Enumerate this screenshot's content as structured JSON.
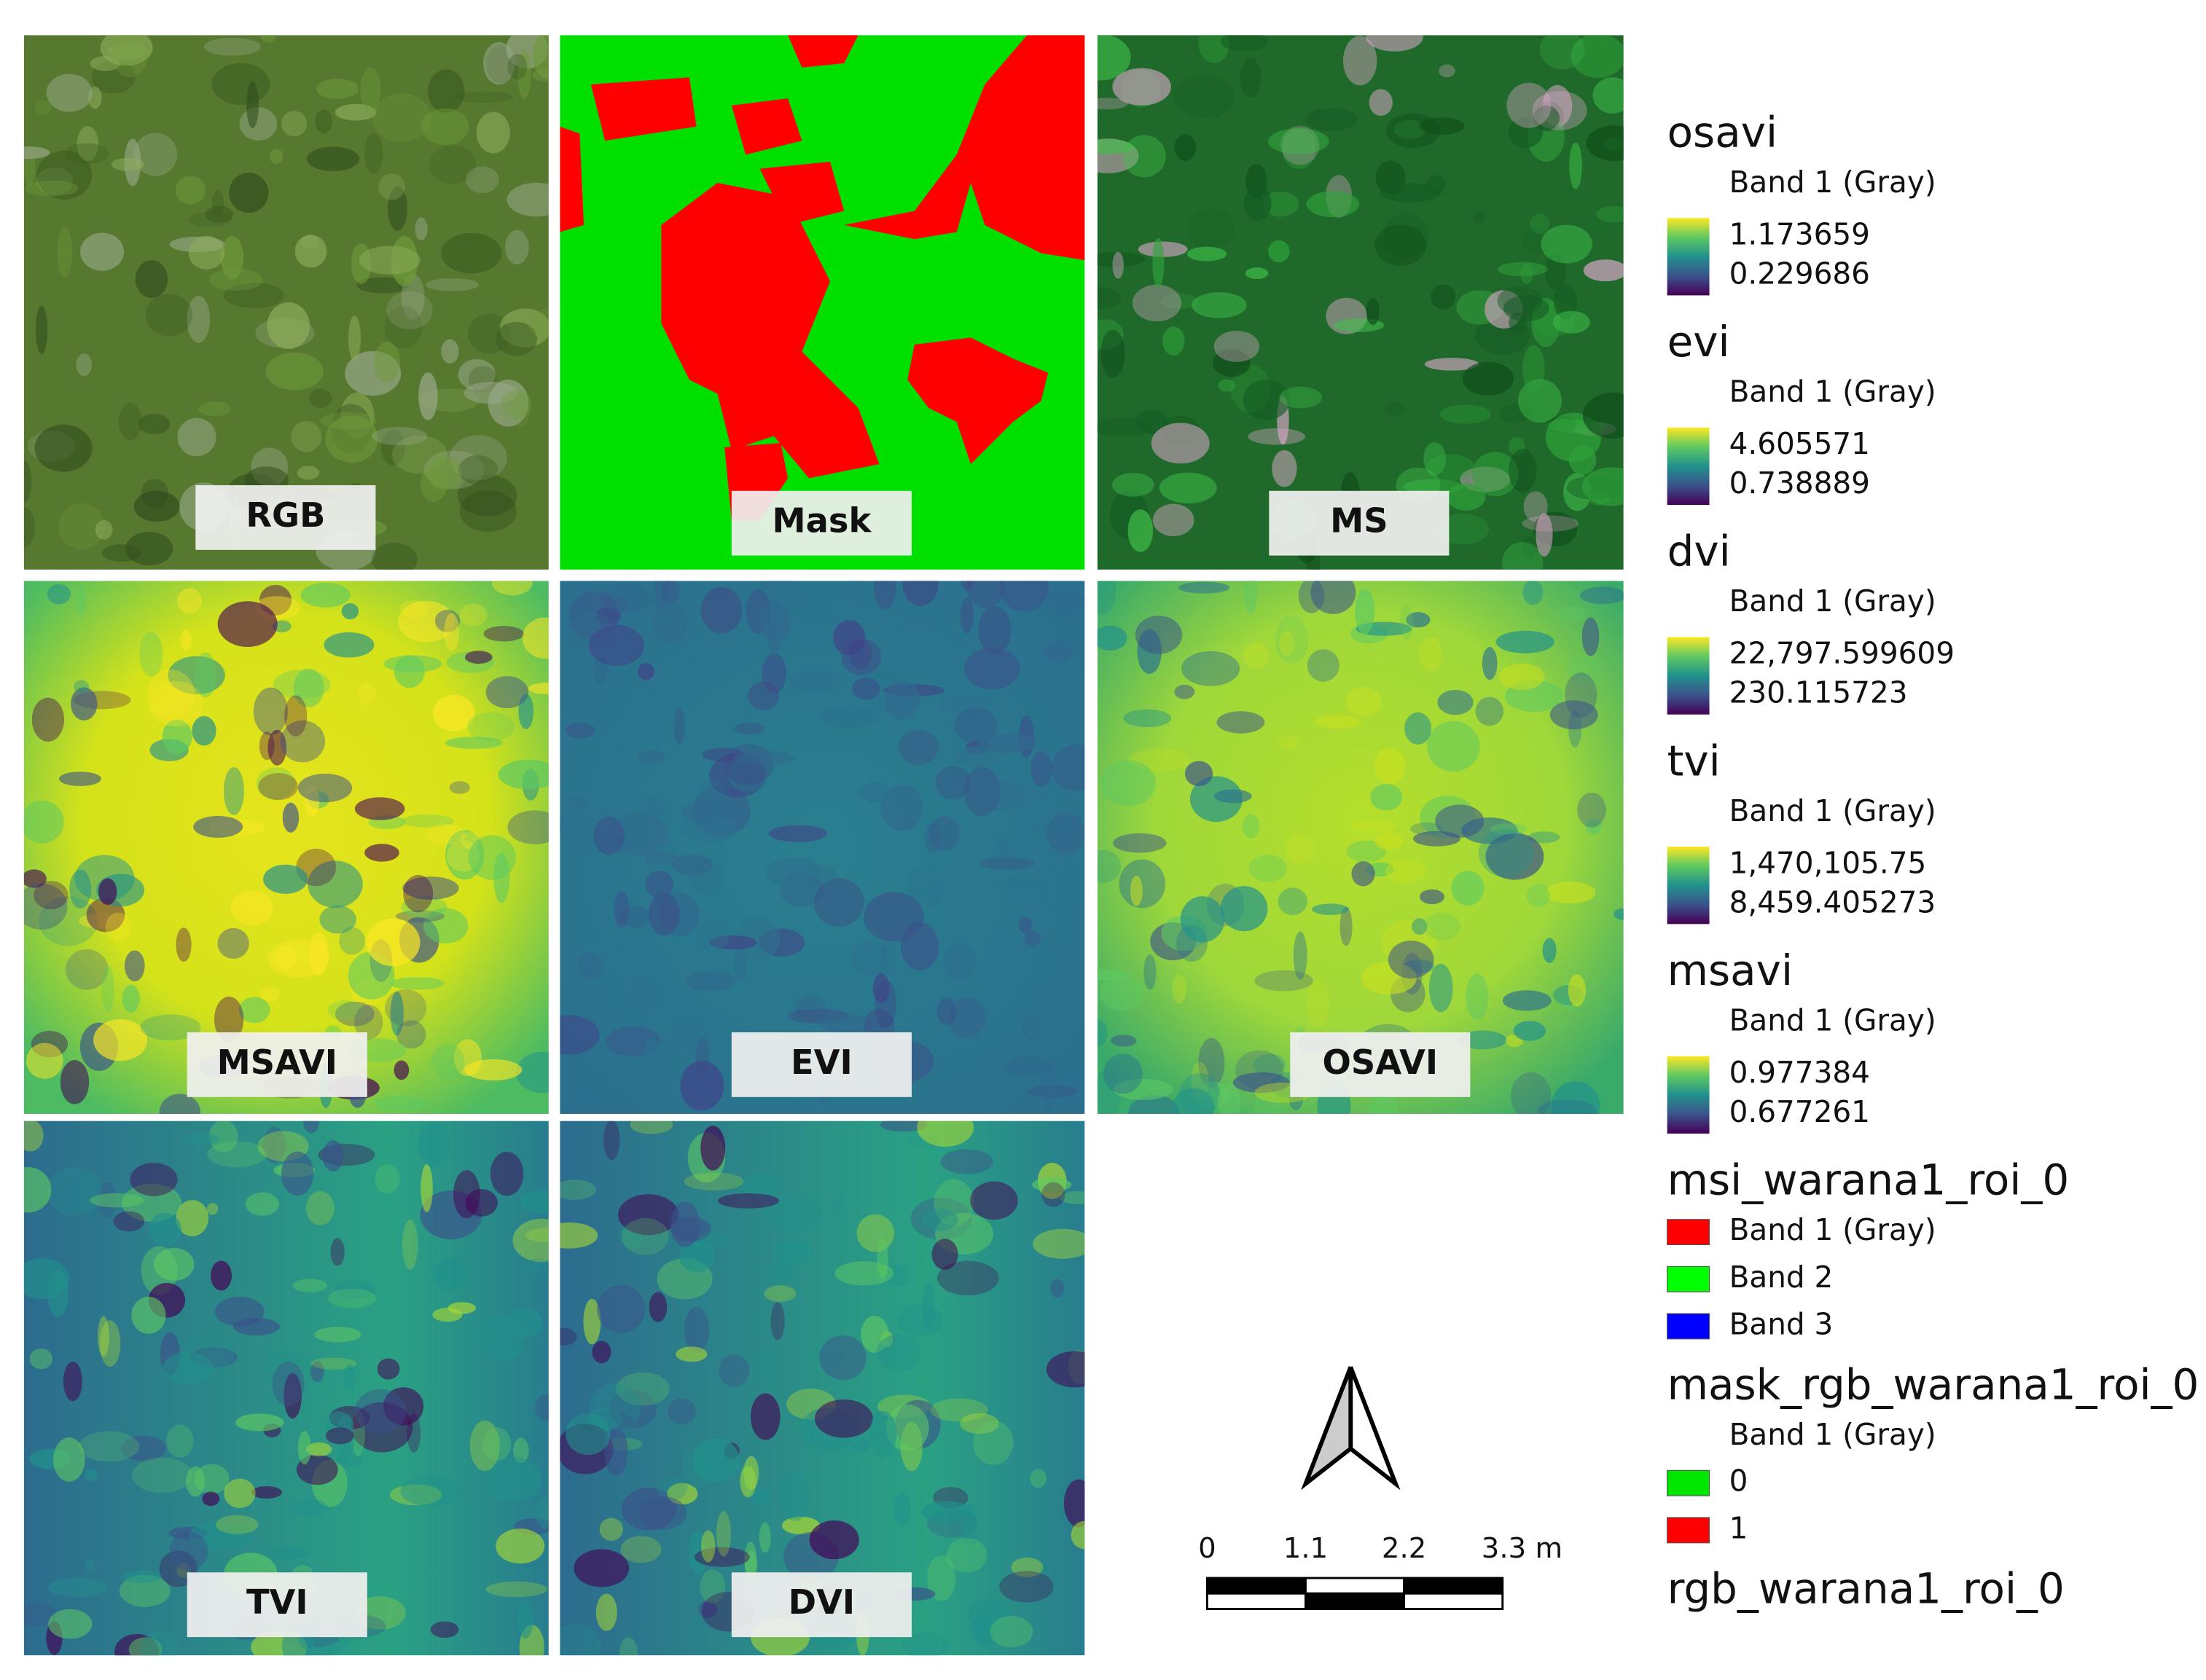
{
  "panels": [
    {
      "label": "RGB"
    },
    {
      "label": "Mask"
    },
    {
      "label": "MS"
    },
    {
      "label": "MSAVI"
    },
    {
      "label": "EVI"
    },
    {
      "label": "OSAVI"
    },
    {
      "label": "TVI"
    },
    {
      "label": "DVI"
    }
  ],
  "legend": [
    {
      "title": "osavi",
      "subtitle": "Band 1 (Gray)",
      "max": "1.173659",
      "min": "0.229686"
    },
    {
      "title": "evi",
      "subtitle": "Band 1 (Gray)",
      "max": "4.605571",
      "min": "0.738889"
    },
    {
      "title": "dvi",
      "subtitle": "Band 1 (Gray)",
      "max": "22,797.599609",
      "min": "230.115723"
    },
    {
      "title": "tvi",
      "subtitle": "Band 1 (Gray)",
      "max": "1,470,105.75",
      "min": "8,459.405273"
    },
    {
      "title": "msavi",
      "subtitle": "Band 1 (Gray)",
      "max": "0.977384",
      "min": "0.677261"
    },
    {
      "title": "msi_warana1_roi_0",
      "items": [
        {
          "label": "Band 1 (Gray)",
          "color": "#ff0000"
        },
        {
          "label": "Band 2",
          "color": "#00ff00"
        },
        {
          "label": "Band 3",
          "color": "#0000ff"
        }
      ]
    },
    {
      "title": "mask_rgb_warana1_roi_0",
      "subtitle": "Band 1 (Gray)",
      "items": [
        {
          "label": "0",
          "color": "#00e600"
        },
        {
          "label": "1",
          "color": "#ff0000"
        }
      ]
    },
    {
      "title": "rgb_warana1_roi_0"
    }
  ],
  "scale_bar": {
    "labels": [
      "0",
      "1.1",
      "2.2",
      "3.3 m"
    ]
  }
}
